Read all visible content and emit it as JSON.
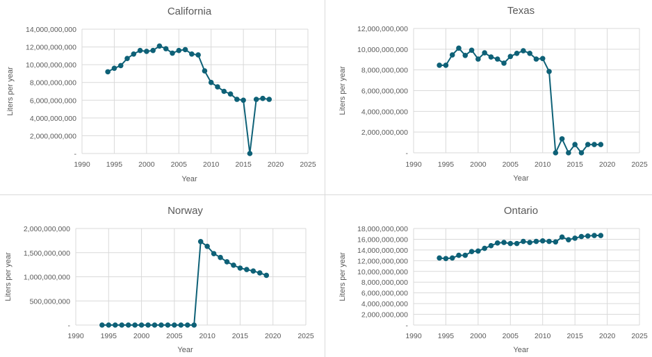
{
  "chart_data": [
    {
      "type": "line",
      "title": "California",
      "xlabel": "Year",
      "ylabel": "Liters per year",
      "xlim": [
        1990,
        2025
      ],
      "ylim": [
        0,
        14000000000
      ],
      "xticks": [
        1990,
        1995,
        2000,
        2005,
        2010,
        2015,
        2020,
        2025
      ],
      "xtick_labels": [
        "1990",
        "1995",
        "2000",
        "2005",
        "2010",
        "2015",
        "2020",
        "2025"
      ],
      "yticks": [
        0,
        2000000000,
        4000000000,
        6000000000,
        8000000000,
        10000000000,
        12000000000,
        14000000000
      ],
      "ytick_labels": [
        "-",
        "2,000,000,000",
        "4,000,000,000",
        "6,000,000,000",
        "8,000,000,000",
        "10,000,000,000",
        "12,000,000,000",
        "14,000,000,000"
      ],
      "grid": true,
      "legend": "none",
      "color": "#0e6177",
      "x": [
        1994,
        1995,
        1996,
        1997,
        1998,
        1999,
        2000,
        2001,
        2002,
        2003,
        2004,
        2005,
        2006,
        2007,
        2008,
        2009,
        2010,
        2011,
        2012,
        2013,
        2014,
        2015,
        2016,
        2017,
        2018,
        2019
      ],
      "y": [
        9200000000,
        9600000000,
        9900000000,
        10700000000,
        11200000000,
        11600000000,
        11500000000,
        11600000000,
        12100000000,
        11800000000,
        11300000000,
        11600000000,
        11700000000,
        11200000000,
        11100000000,
        9300000000,
        8000000000,
        7500000000,
        7000000000,
        6700000000,
        6100000000,
        6000000000,
        0,
        6100000000,
        6200000000,
        6100000000
      ]
    },
    {
      "type": "line",
      "title": "Texas",
      "xlabel": "Year",
      "ylabel": "Liters per year",
      "xlim": [
        1990,
        2025
      ],
      "ylim": [
        0,
        12000000000
      ],
      "xticks": [
        1990,
        1995,
        2000,
        2005,
        2010,
        2015,
        2020,
        2025
      ],
      "xtick_labels": [
        "1990",
        "1995",
        "2000",
        "2005",
        "2010",
        "2015",
        "2020",
        "2025"
      ],
      "yticks": [
        0,
        2000000000,
        4000000000,
        6000000000,
        8000000000,
        10000000000,
        12000000000
      ],
      "ytick_labels": [
        "-",
        "2,000,000,000",
        "4,000,000,000",
        "6,000,000,000",
        "8,000,000,000",
        "10,000,000,000",
        "12,000,000,000"
      ],
      "grid": true,
      "legend": "none",
      "color": "#0e6177",
      "x": [
        1994,
        1995,
        1996,
        1997,
        1998,
        1999,
        2000,
        2001,
        2002,
        2003,
        2004,
        2005,
        2006,
        2007,
        2008,
        2009,
        2010,
        2011,
        2012,
        2013,
        2014,
        2015,
        2016,
        2017,
        2018,
        2019
      ],
      "y": [
        8450000000,
        8450000000,
        9450000000,
        10100000000,
        9400000000,
        9900000000,
        9050000000,
        9650000000,
        9250000000,
        9050000000,
        8650000000,
        9300000000,
        9600000000,
        9850000000,
        9600000000,
        9050000000,
        9100000000,
        7850000000,
        0,
        1350000000,
        0,
        800000000,
        0,
        800000000,
        800000000,
        800000000
      ]
    },
    {
      "type": "line",
      "title": "Norway",
      "xlabel": "Year",
      "ylabel": "Liters per year",
      "xlim": [
        1990,
        2025
      ],
      "ylim": [
        0,
        2000000000
      ],
      "xticks": [
        1990,
        1995,
        2000,
        2005,
        2010,
        2015,
        2020,
        2025
      ],
      "xtick_labels": [
        "1990",
        "1995",
        "2000",
        "2005",
        "2010",
        "2015",
        "2020",
        "2025"
      ],
      "yticks": [
        0,
        500000000,
        1000000000,
        1500000000,
        2000000000
      ],
      "ytick_labels": [
        "-",
        "500,000,000",
        "1,000,000,000",
        "1,500,000,000",
        "2,000,000,000"
      ],
      "grid": true,
      "legend": "none",
      "color": "#0e6177",
      "x": [
        1994,
        1995,
        1996,
        1997,
        1998,
        1999,
        2000,
        2001,
        2002,
        2003,
        2004,
        2005,
        2006,
        2007,
        2008,
        2009,
        2010,
        2011,
        2012,
        2013,
        2014,
        2015,
        2016,
        2017,
        2018,
        2019
      ],
      "y": [
        0,
        0,
        0,
        0,
        0,
        0,
        0,
        0,
        0,
        0,
        0,
        0,
        0,
        0,
        0,
        1730000000,
        1630000000,
        1480000000,
        1400000000,
        1310000000,
        1240000000,
        1180000000,
        1150000000,
        1120000000,
        1080000000,
        1030000000
      ]
    },
    {
      "type": "line",
      "title": "Ontario",
      "xlabel": "Year",
      "ylabel": "Liters per year",
      "xlim": [
        1990,
        2025
      ],
      "ylim": [
        0,
        18000000000
      ],
      "xticks": [
        1990,
        1995,
        2000,
        2005,
        2010,
        2015,
        2020,
        2025
      ],
      "xtick_labels": [
        "1990",
        "1995",
        "2000",
        "2005",
        "2010",
        "2015",
        "2020",
        "2025"
      ],
      "yticks": [
        0,
        2000000000,
        4000000000,
        6000000000,
        8000000000,
        10000000000,
        12000000000,
        14000000000,
        16000000000,
        18000000000
      ],
      "ytick_labels": [
        "-",
        "2,000,000,000",
        "4,000,000,000",
        "6,000,000,000",
        "8,000,000,000",
        "10,000,000,000",
        "12,000,000,000",
        "14,000,000,000",
        "16,000,000,000",
        "18,000,000,000"
      ],
      "grid": true,
      "legend": "none",
      "color": "#0e6177",
      "x": [
        1994,
        1995,
        1996,
        1997,
        1998,
        1999,
        2000,
        2001,
        2002,
        2003,
        2004,
        2005,
        2006,
        2007,
        2008,
        2009,
        2010,
        2011,
        2012,
        2013,
        2014,
        2015,
        2016,
        2017,
        2018,
        2019
      ],
      "y": [
        12500000000,
        12400000000,
        12500000000,
        13000000000,
        13000000000,
        13700000000,
        13800000000,
        14300000000,
        14800000000,
        15300000000,
        15400000000,
        15200000000,
        15200000000,
        15600000000,
        15400000000,
        15600000000,
        15700000000,
        15600000000,
        15500000000,
        16400000000,
        15900000000,
        16200000000,
        16500000000,
        16600000000,
        16700000000,
        16700000000
      ]
    }
  ]
}
